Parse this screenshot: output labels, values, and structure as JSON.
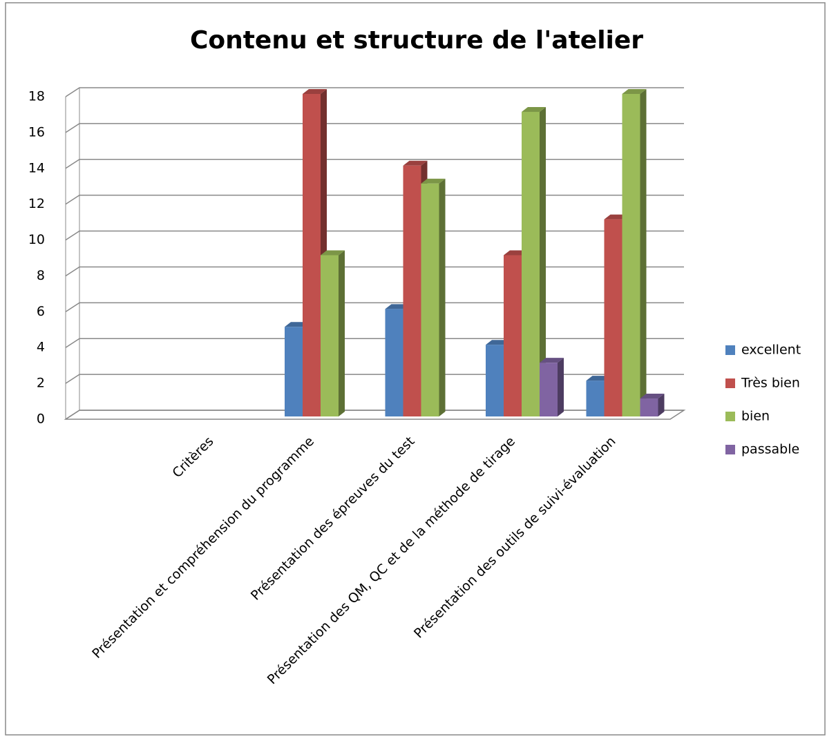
{
  "chart_data": {
    "type": "bar3d",
    "title": "Contenu et structure de l'atelier",
    "categories": [
      "Critères",
      "Présentation et compréhension du programme",
      "Présentation des épreuves du test",
      "Présentation des QM, QC et de la méthode de tirage",
      "Présentation des outils de suivi-évaluation"
    ],
    "series": [
      {
        "name": "excellent",
        "color": "#4f81bd",
        "values": [
          null,
          5,
          6,
          4,
          2
        ]
      },
      {
        "name": "Très bien",
        "color": "#c0504d",
        "values": [
          null,
          18,
          14,
          9,
          11
        ]
      },
      {
        "name": "bien",
        "color": "#9bbb59",
        "values": [
          null,
          9,
          13,
          17,
          18
        ]
      },
      {
        "name": "passable",
        "color": "#8064a2",
        "values": [
          null,
          null,
          null,
          3,
          1
        ]
      }
    ],
    "ylim": [
      0,
      18
    ],
    "yticks": [
      0,
      2,
      4,
      6,
      8,
      10,
      12,
      14,
      16,
      18
    ],
    "grid": true,
    "legend": "right"
  }
}
